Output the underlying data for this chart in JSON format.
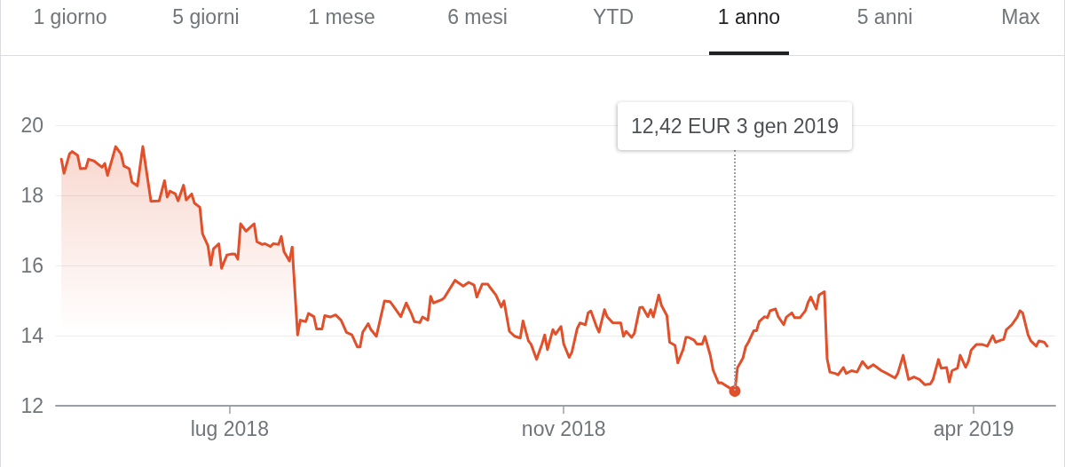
{
  "chart_data": {
    "type": "line",
    "annotations": [
      "1 giorno",
      "5 giorni",
      "1 mese",
      "6 mesi",
      "YTD",
      "1 anno",
      "5 anni",
      "Max",
      {
        "text": "12,42 EUR 3 gen 2019",
        "x": "2019-01-03",
        "y": 12.42
      }
    ],
    "series": [
      {
        "type": "area",
        "color": "#e1502a",
        "x": [
          "2018-04-30",
          "2018-05-01",
          "2018-05-03",
          "2018-05-04",
          "2018-05-06",
          "2018-05-07",
          "2018-05-09",
          "2018-05-10",
          "2018-05-12",
          "2018-05-15",
          "2018-05-16",
          "2018-05-17",
          "2018-05-20",
          "2018-05-22",
          "2018-05-23",
          "2018-05-25",
          "2018-05-26",
          "2018-05-28",
          "2018-05-30",
          "2018-06-02",
          "2018-06-05",
          "2018-06-07",
          "2018-06-08",
          "2018-06-09",
          "2018-06-11",
          "2018-06-12",
          "2018-06-14",
          "2018-06-15",
          "2018-06-17",
          "2018-06-18",
          "2018-06-20",
          "2018-06-21",
          "2018-06-23",
          "2018-06-24",
          "2018-06-25",
          "2018-06-27",
          "2018-06-28",
          "2018-06-30",
          "2018-07-02",
          "2018-07-03",
          "2018-07-04",
          "2018-07-05",
          "2018-07-07",
          "2018-07-10",
          "2018-07-11",
          "2018-07-13",
          "2018-07-14",
          "2018-07-16",
          "2018-07-17",
          "2018-07-19",
          "2018-07-20",
          "2018-07-21",
          "2018-07-23",
          "2018-07-24"
        ],
        "values": [
          19.03,
          18.63,
          19.18,
          19.25,
          19.14,
          18.76,
          18.77,
          19.03,
          18.98,
          18.8,
          18.91,
          18.57,
          19.39,
          19.18,
          18.84,
          18.76,
          18.38,
          18.27,
          19.39,
          17.83,
          17.84,
          18.42,
          17.95,
          18.12,
          18.04,
          17.84,
          18.29,
          17.87,
          18.04,
          17.78,
          17.66,
          16.9,
          16.56,
          16.01,
          16.47,
          16.62,
          15.92,
          16.3,
          16.33,
          16.32,
          16.18,
          17.19,
          16.98,
          17.19,
          16.68,
          16.6,
          16.62,
          16.54,
          16.62,
          16.6,
          16.83,
          16.39,
          16.13,
          16.52
        ]
      },
      {
        "type": "line",
        "color": "#e1502a",
        "x": [
          "2018-07-24",
          "2018-07-26",
          "2018-07-27",
          "2018-07-29",
          "2018-07-30",
          "2018-08-01",
          "2018-08-02",
          "2018-08-04",
          "2018-08-05",
          "2018-08-07",
          "2018-08-09",
          "2018-08-11",
          "2018-08-13",
          "2018-08-15",
          "2018-08-17",
          "2018-08-18",
          "2018-08-19",
          "2018-08-21",
          "2018-08-22",
          "2018-08-24",
          "2018-08-27",
          "2018-08-29",
          "2018-08-30",
          "2018-09-02",
          "2018-09-04",
          "2018-09-06",
          "2018-09-07",
          "2018-09-09",
          "2018-09-10",
          "2018-09-12",
          "2018-09-13",
          "2018-09-14",
          "2018-09-17",
          "2018-09-18",
          "2018-09-20",
          "2018-09-22",
          "2018-09-23",
          "2018-09-25",
          "2018-09-27",
          "2018-09-29",
          "2018-09-30",
          "2018-10-02",
          "2018-10-04",
          "2018-10-05",
          "2018-10-07",
          "2018-10-09",
          "2018-10-10",
          "2018-10-12",
          "2018-10-14",
          "2018-10-16",
          "2018-10-17",
          "2018-10-19",
          "2018-10-20",
          "2018-10-22",
          "2018-10-24",
          "2018-10-25",
          "2018-10-26",
          "2018-10-28",
          "2018-10-29",
          "2018-10-31",
          "2018-11-01",
          "2018-11-03",
          "2018-11-04",
          "2018-11-06",
          "2018-11-07",
          "2018-11-09",
          "2018-11-10",
          "2018-11-11",
          "2018-11-13",
          "2018-11-14",
          "2018-11-16",
          "2018-11-17",
          "2018-11-19",
          "2018-11-22",
          "2018-11-23",
          "2018-11-24",
          "2018-11-26",
          "2018-11-27",
          "2018-11-29",
          "2018-11-30",
          "2018-12-02",
          "2018-12-03",
          "2018-12-04",
          "2018-12-06",
          "2018-12-07",
          "2018-12-09",
          "2018-12-10",
          "2018-12-12",
          "2018-12-13",
          "2018-12-15",
          "2018-12-16",
          "2018-12-17",
          "2018-12-19",
          "2018-12-20",
          "2018-12-22",
          "2018-12-23",
          "2018-12-25",
          "2018-12-26",
          "2018-12-28",
          "2018-12-29",
          "2018-12-31",
          "2019-01-03",
          "2019-01-04",
          "2019-01-05",
          "2019-01-06",
          "2019-01-07",
          "2019-01-08",
          "2019-01-10",
          "2019-01-11",
          "2019-01-12",
          "2019-01-14",
          "2019-01-15",
          "2019-01-16",
          "2019-01-18",
          "2019-01-19",
          "2019-01-21",
          "2019-01-22",
          "2019-01-24",
          "2019-01-25",
          "2019-01-27",
          "2019-01-29",
          "2019-01-30",
          "2019-01-31",
          "2019-02-02",
          "2019-02-03",
          "2019-02-05",
          "2019-02-06",
          "2019-02-07",
          "2019-02-09",
          "2019-02-10",
          "2019-02-12",
          "2019-02-13",
          "2019-02-15",
          "2019-02-17",
          "2019-02-19",
          "2019-02-21",
          "2019-02-23",
          "2019-02-26",
          "2019-02-28",
          "2019-03-03",
          "2019-03-04",
          "2019-03-06",
          "2019-03-07",
          "2019-03-08",
          "2019-03-10",
          "2019-03-12",
          "2019-03-14",
          "2019-03-16",
          "2019-03-17",
          "2019-03-19",
          "2019-03-20",
          "2019-03-22",
          "2019-03-23",
          "2019-03-24",
          "2019-03-26",
          "2019-03-27",
          "2019-03-29",
          "2019-03-30",
          "2019-03-31",
          "2019-04-02",
          "2019-04-04",
          "2019-04-06",
          "2019-04-08",
          "2019-04-09",
          "2019-04-11",
          "2019-04-12",
          "2019-04-13",
          "2019-04-15",
          "2019-04-17",
          "2019-04-18",
          "2019-04-19",
          "2019-04-21",
          "2019-04-22",
          "2019-04-24",
          "2019-04-25",
          "2019-04-27",
          "2019-04-28"
        ],
        "values": [
          16.52,
          14.02,
          14.44,
          14.4,
          14.63,
          14.54,
          14.19,
          14.19,
          14.57,
          14.53,
          14.59,
          14.44,
          14.09,
          14.02,
          13.68,
          13.68,
          14.1,
          14.34,
          14.17,
          13.98,
          14.99,
          14.97,
          14.87,
          14.54,
          14.93,
          14.61,
          14.4,
          14.37,
          14.53,
          14.44,
          15.12,
          14.93,
          15.02,
          15.08,
          15.33,
          15.58,
          15.52,
          15.41,
          15.52,
          15.44,
          15.1,
          15.47,
          15.47,
          15.36,
          15.16,
          14.82,
          14.99,
          14.12,
          13.98,
          13.93,
          14.42,
          13.85,
          13.75,
          13.32,
          13.76,
          14.02,
          13.6,
          14.17,
          14.04,
          14.26,
          13.76,
          13.38,
          13.53,
          14.21,
          14.36,
          14.31,
          14.65,
          14.7,
          14.27,
          14.1,
          14.74,
          14.54,
          14.37,
          14.36,
          13.98,
          14.12,
          13.95,
          14.06,
          14.8,
          14.81,
          14.54,
          14.74,
          14.53,
          15.16,
          14.86,
          14.57,
          13.81,
          13.72,
          13.22,
          13.61,
          13.95,
          13.95,
          13.87,
          13.76,
          13.76,
          13.98,
          13.43,
          13.02,
          12.65,
          12.66,
          12.56,
          12.42,
          13.09,
          13.22,
          13.36,
          13.68,
          13.81,
          14.14,
          14.14,
          14.4,
          14.54,
          14.51,
          14.71,
          14.76,
          14.54,
          14.31,
          14.53,
          14.65,
          14.51,
          14.51,
          14.71,
          14.95,
          15.1,
          14.76,
          15.16,
          15.25,
          13.34,
          12.96,
          12.92,
          12.88,
          13.09,
          12.92,
          13.0,
          12.96,
          13.26,
          13.07,
          13.17,
          13.0,
          12.92,
          12.79,
          12.92,
          13.44,
          13.09,
          12.75,
          12.82,
          12.75,
          12.6,
          12.62,
          12.75,
          13.32,
          13.07,
          13.09,
          12.68,
          13.0,
          13.07,
          13.44,
          13.1,
          13.26,
          13.58,
          13.75,
          13.75,
          13.7,
          14.0,
          13.81,
          13.87,
          13.89,
          14.17,
          14.31,
          14.53,
          14.71,
          14.65,
          14.02,
          13.85,
          13.7,
          13.85,
          13.81,
          13.7
        ]
      }
    ],
    "xlim": [
      "2018-04-28",
      "2019-05-01"
    ],
    "xticks": [
      {
        "value": "2018-07-01",
        "label": "lug 2018"
      },
      {
        "value": "2018-11-01",
        "label": "nov 2018"
      },
      {
        "value": "2019-04-01",
        "label": "apr 2019"
      }
    ],
    "ylim": [
      12,
      20
    ],
    "yticks": [
      12,
      14,
      16,
      18,
      20
    ],
    "grid": "y"
  }
}
